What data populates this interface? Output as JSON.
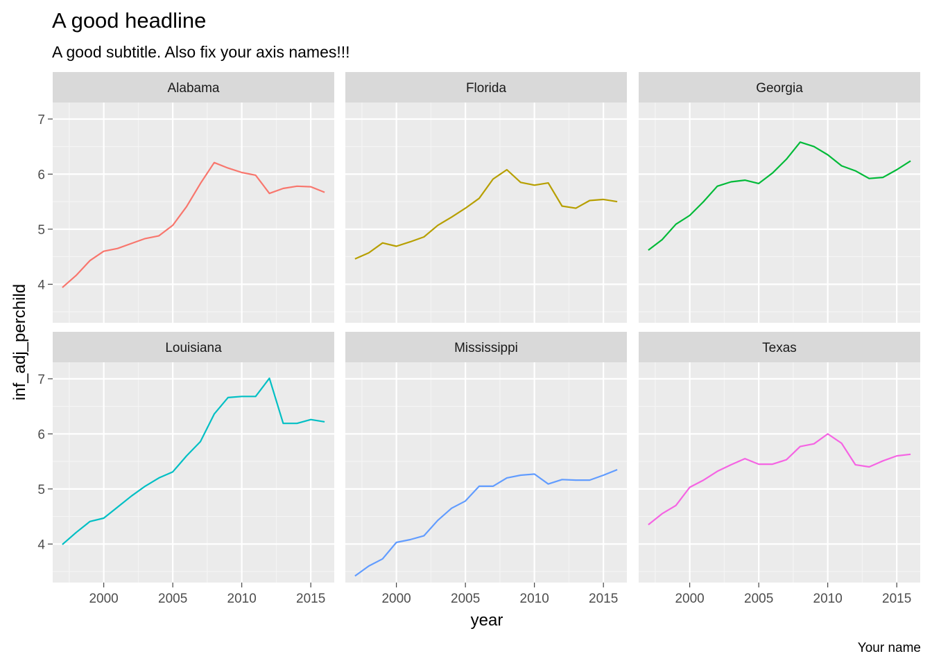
{
  "chart_data": {
    "type": "line",
    "title": "A good headline",
    "subtitle": "A good subtitle. Also fix your axis names!!!",
    "caption": "Your name",
    "xlabel": "year",
    "ylabel": "inf_adj_perchild",
    "xlim": [
      1996.3,
      2016.7
    ],
    "ylim": [
      3.3,
      7.3
    ],
    "x_ticks": [
      2000,
      2005,
      2010,
      2015
    ],
    "y_ticks": [
      4,
      5,
      6,
      7
    ],
    "grid": true,
    "legend": "none",
    "facets": [
      "Alabama",
      "Florida",
      "Georgia",
      "Louisiana",
      "Mississippi",
      "Texas"
    ],
    "x": [
      1997,
      1998,
      1999,
      2000,
      2001,
      2002,
      2003,
      2004,
      2005,
      2006,
      2007,
      2008,
      2009,
      2010,
      2011,
      2012,
      2013,
      2014,
      2015,
      2016
    ],
    "series": [
      {
        "name": "Alabama",
        "color": "#F8766D",
        "values": [
          3.94,
          4.16,
          4.43,
          4.6,
          4.65,
          4.74,
          4.83,
          4.88,
          5.07,
          5.41,
          5.83,
          6.21,
          6.11,
          6.03,
          5.98,
          5.65,
          5.74,
          5.78,
          5.77,
          5.67
        ]
      },
      {
        "name": "Florida",
        "color": "#B79F00",
        "values": [
          4.46,
          4.57,
          4.75,
          4.69,
          4.77,
          4.86,
          5.07,
          5.22,
          5.38,
          5.56,
          5.91,
          6.08,
          5.85,
          5.8,
          5.84,
          5.42,
          5.38,
          5.52,
          5.54,
          5.5
        ]
      },
      {
        "name": "Georgia",
        "color": "#00BA38",
        "values": [
          4.62,
          4.81,
          5.09,
          5.25,
          5.5,
          5.78,
          5.86,
          5.89,
          5.83,
          6.02,
          6.27,
          6.58,
          6.5,
          6.35,
          6.15,
          6.06,
          5.92,
          5.94,
          6.08,
          6.24
        ]
      },
      {
        "name": "Louisiana",
        "color": "#00BFC4",
        "values": [
          3.99,
          4.21,
          4.41,
          4.47,
          4.67,
          4.87,
          5.05,
          5.2,
          5.31,
          5.6,
          5.86,
          6.36,
          6.66,
          6.68,
          6.68,
          7.01,
          6.19,
          6.19,
          6.26,
          6.22
        ]
      },
      {
        "name": "Mississippi",
        "color": "#619CFF",
        "values": [
          3.42,
          3.6,
          3.73,
          4.03,
          4.08,
          4.15,
          4.43,
          4.65,
          4.78,
          5.05,
          5.05,
          5.2,
          5.25,
          5.27,
          5.09,
          5.17,
          5.16,
          5.16,
          5.25,
          5.35
        ]
      },
      {
        "name": "Texas",
        "color": "#F564E3",
        "values": [
          4.35,
          4.55,
          4.7,
          5.03,
          5.16,
          5.32,
          5.44,
          5.55,
          5.45,
          5.45,
          5.53,
          5.77,
          5.82,
          6.0,
          5.83,
          5.44,
          5.4,
          5.51,
          5.6,
          5.63
        ]
      }
    ]
  }
}
